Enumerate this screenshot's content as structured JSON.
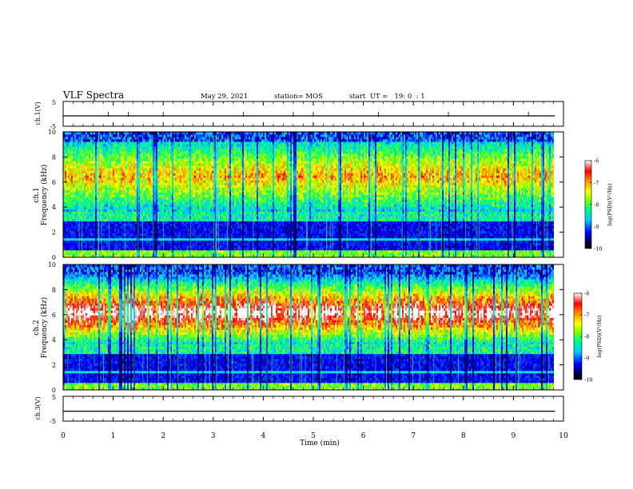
{
  "header": {
    "title": "VLF Spectra",
    "date": "May 29, 2021",
    "station": "station= MOS",
    "start_time": "start  UT =   19: 0  : 1"
  },
  "chart_data": [
    {
      "type": "line",
      "panel": "ch1-waveform",
      "ylabel": "ch.1(V)",
      "ylim": [
        -5,
        5
      ],
      "y_ticks": [
        "5",
        "-5"
      ],
      "x": [
        0,
        9.83
      ],
      "values": [
        -0.8,
        -0.8
      ]
    },
    {
      "type": "heatmap",
      "panel": "ch1-spectrogram",
      "ylabel_top": "ch.1",
      "ylabel": "Frequency (kHz)",
      "ylim": [
        0,
        10
      ],
      "y_ticks": [
        "0",
        "2",
        "4",
        "6",
        "8",
        "10"
      ],
      "xlim": [
        0,
        10
      ],
      "colorbar": {
        "label": "log(PSD)(V²/Hz)",
        "range": [
          -10,
          -6
        ],
        "ticks": [
          "-6",
          "-7",
          "-8",
          "-9",
          "-10"
        ]
      }
    },
    {
      "type": "heatmap",
      "panel": "ch2-spectrogram",
      "ylabel_top": "ch.2",
      "ylabel": "Frequency (kHz)",
      "ylim": [
        0,
        10
      ],
      "y_ticks": [
        "0",
        "2",
        "4",
        "6",
        "8",
        "10"
      ],
      "xlim": [
        0,
        10
      ],
      "colorbar": {
        "label": "log(PSD)(V²/Hz)",
        "range": [
          -10,
          -6
        ],
        "ticks": [
          "-6",
          "-7",
          "-8",
          "-9",
          "-10"
        ]
      }
    },
    {
      "type": "line",
      "panel": "ch3-waveform",
      "ylabel": "ch.3(V)",
      "ylim": [
        -5,
        5
      ],
      "y_ticks": [
        "5",
        "-5"
      ],
      "x": [
        0,
        9.83
      ],
      "values": [
        -1.0,
        -1.0
      ],
      "xlabel": "Time (min)",
      "x_ticks": [
        "0",
        "1",
        "2",
        "3",
        "4",
        "5",
        "6",
        "7",
        "8",
        "9",
        "10"
      ]
    }
  ]
}
